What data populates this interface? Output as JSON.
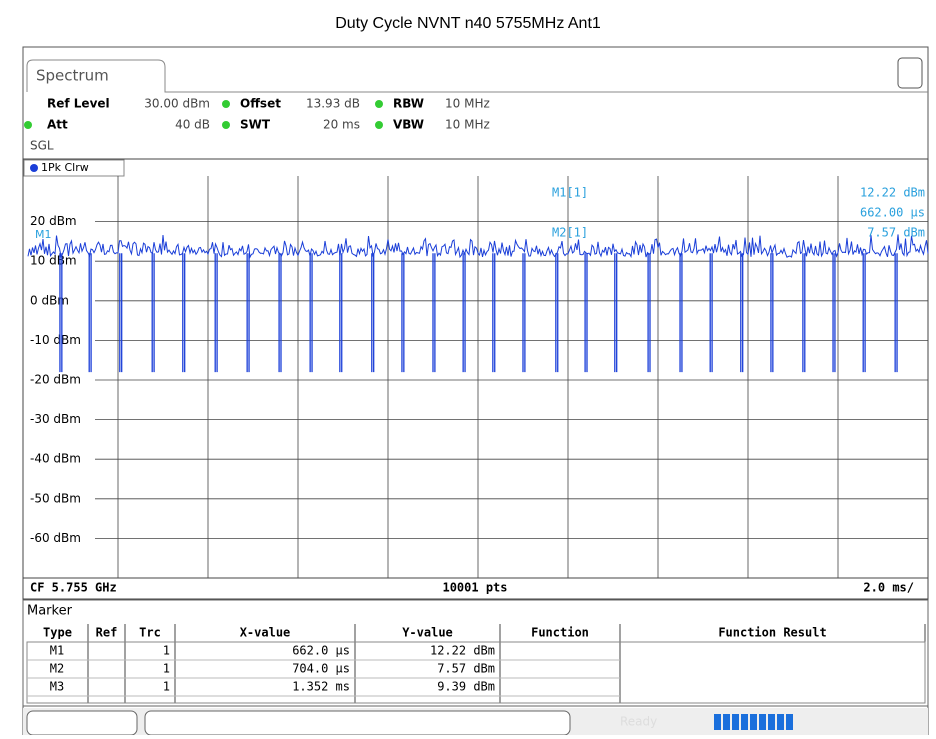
{
  "title": "Duty Cycle NVNT n40 5755MHz Ant1",
  "tab": "Spectrum",
  "settings": {
    "row1": [
      {
        "label": "Ref Level",
        "value": "30.00 dBm"
      },
      {
        "label": "Offset",
        "value": "13.93 dB"
      },
      {
        "label": "RBW",
        "value": "10 MHz"
      }
    ],
    "row2": [
      {
        "label": "Att",
        "value": "40 dB"
      },
      {
        "label": "SWT",
        "value": "20 ms"
      },
      {
        "label": "VBW",
        "value": "10 MHz"
      }
    ],
    "mode": "SGL"
  },
  "trace_label": "1Pk Clrw",
  "plot": {
    "ylim": [
      -70,
      30
    ],
    "yticks": [
      {
        "value": 20,
        "label": "20 dBm"
      },
      {
        "value": 10,
        "label": "10 dBm"
      },
      {
        "value": 0,
        "label": "0 dBm"
      },
      {
        "value": -10,
        "label": "-10 dBm"
      },
      {
        "value": -20,
        "label": "-20 dBm"
      },
      {
        "value": -30,
        "label": "-30 dBm"
      },
      {
        "value": -40,
        "label": "-40 dBm"
      },
      {
        "value": -50,
        "label": "-50 dBm"
      },
      {
        "value": -60,
        "label": "-60 dBm"
      }
    ],
    "xlim": [
      0,
      20
    ],
    "xticks": [
      2,
      4,
      6,
      8,
      10,
      12,
      14,
      16,
      18
    ],
    "trace_level": 12,
    "dip_level": -18,
    "dip_width": 0.042,
    "dips": [
      0.71,
      1.36,
      2.04,
      2.76,
      3.44,
      4.16,
      4.87,
      5.58,
      6.27,
      6.93,
      7.64,
      8.31,
      9.0,
      9.67,
      10.33,
      11.0,
      11.73,
      12.38,
      13.04,
      13.78,
      14.49,
      15.16,
      15.84,
      16.51,
      17.22,
      17.89,
      18.56,
      19.27
    ],
    "marker_flag": "M1"
  },
  "marker_info": [
    {
      "label": "M1[1]",
      "lines": [
        "12.22 dBm",
        "662.00 µs"
      ]
    },
    {
      "label": "M2[1]",
      "lines": [
        "7.57 dBm"
      ]
    }
  ],
  "footer": {
    "center": "CF 5.755 GHz",
    "points": "10001 pts",
    "scale": "2.0 ms/"
  },
  "table": {
    "title": "Marker",
    "headers": [
      "Type",
      "Ref",
      "Trc",
      "X-value",
      "Y-value",
      "Function",
      "Function Result"
    ],
    "rows": [
      {
        "type": "M1",
        "trc": "1",
        "x": "662.0 µs",
        "y": "12.22 dBm"
      },
      {
        "type": "M2",
        "trc": "1",
        "x": "704.0 µs",
        "y": "7.57 dBm"
      },
      {
        "type": "M3",
        "trc": "1",
        "x": "1.352 ms",
        "y": "9.39 dBm"
      }
    ]
  },
  "status": "Ready"
}
